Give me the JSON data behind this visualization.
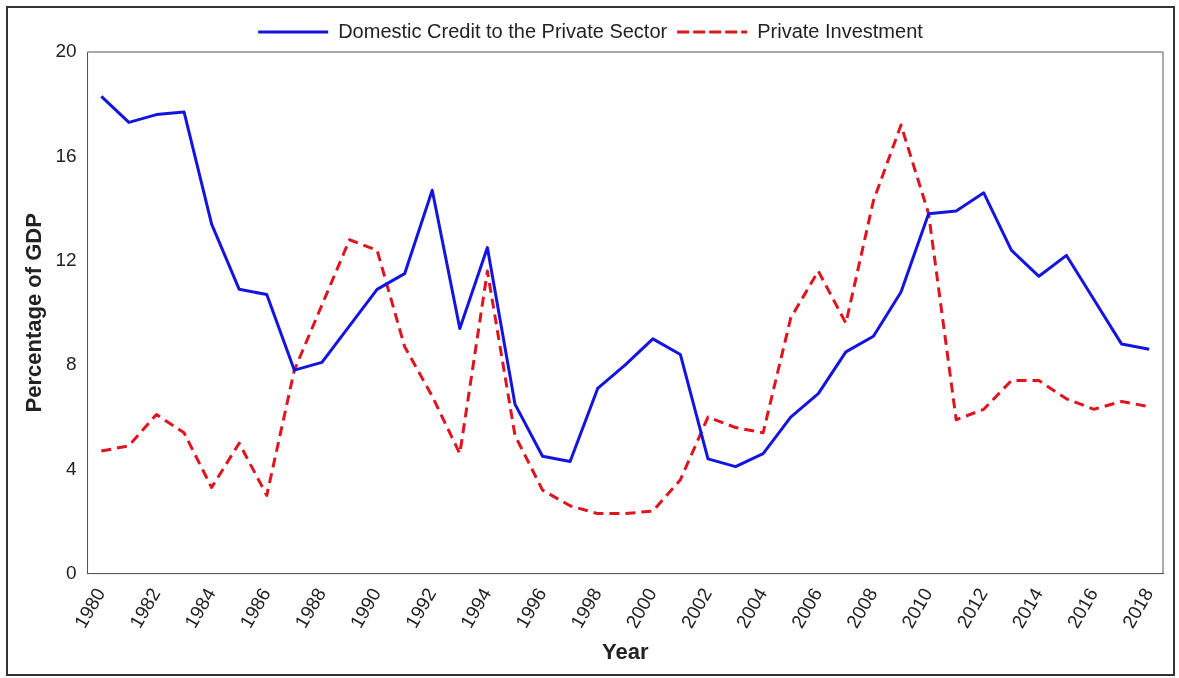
{
  "chart_data": {
    "type": "line",
    "xlabel": "Year",
    "ylabel": "Percentage of GDP",
    "categories": [
      "1980",
      null,
      "1982",
      null,
      "1984",
      null,
      "1986",
      null,
      "1988",
      null,
      "1990",
      null,
      "1992",
      null,
      "1994",
      null,
      "1996",
      null,
      "1998",
      null,
      "2000",
      null,
      "2002",
      null,
      "2004",
      null,
      "2006",
      null,
      "2008",
      null,
      "2010",
      null,
      "2012",
      null,
      "2014",
      null,
      "2016",
      null,
      "2018"
    ],
    "series": [
      {
        "name": "Domestic Credit to the Private Sector",
        "color": "#1414e0",
        "line_style": "solid",
        "values": [
          18.3,
          17.3,
          17.6,
          17.7,
          13.4,
          10.9,
          10.7,
          7.8,
          8.1,
          9.5,
          10.9,
          11.5,
          14.7,
          9.4,
          12.5,
          6.5,
          4.5,
          4.3,
          7.1,
          8.0,
          9.0,
          8.4,
          4.4,
          4.1,
          4.6,
          6.0,
          6.9,
          8.5,
          9.1,
          10.8,
          13.8,
          13.9,
          14.6,
          12.4,
          11.4,
          12.2,
          10.5,
          8.8,
          8.6
        ]
      },
      {
        "name": "Private Investment",
        "color": "#e0141e",
        "line_style": "dashed",
        "values": [
          4.7,
          4.9,
          6.1,
          5.4,
          3.3,
          5.0,
          3.0,
          7.8,
          10.3,
          12.8,
          12.4,
          8.7,
          6.8,
          4.6,
          11.6,
          5.3,
          3.2,
          2.6,
          2.3,
          2.3,
          2.4,
          3.6,
          6.0,
          5.6,
          5.4,
          9.8,
          11.6,
          9.6,
          14.3,
          17.2,
          13.8,
          5.9,
          6.3,
          7.4,
          7.4,
          6.7,
          6.3,
          6.6,
          6.4
        ]
      }
    ],
    "ylim": [
      0,
      20
    ],
    "yticks": [
      0,
      4,
      8,
      12,
      16,
      20
    ],
    "grid": false,
    "legend": "top",
    "marker": "none"
  }
}
